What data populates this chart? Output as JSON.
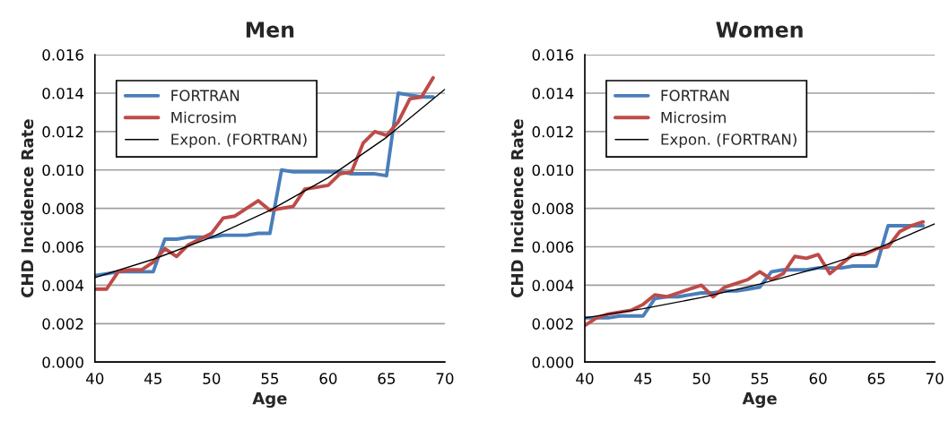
{
  "chart_data": [
    {
      "type": "line",
      "title": "Men",
      "xlabel": "Age",
      "ylabel": "CHD Incidence Rate",
      "x": [
        40,
        41,
        42,
        43,
        44,
        45,
        46,
        47,
        48,
        49,
        50,
        51,
        52,
        53,
        54,
        55,
        56,
        57,
        58,
        59,
        60,
        61,
        62,
        63,
        64,
        65,
        66,
        67,
        68,
        69
      ],
      "series": [
        {
          "name": "FORTRAN",
          "color": "#4a7ebb",
          "values": [
            0.0045,
            0.0046,
            0.0047,
            0.0047,
            0.0047,
            0.0047,
            0.0064,
            0.0064,
            0.0065,
            0.0065,
            0.0065,
            0.0066,
            0.0066,
            0.0066,
            0.0067,
            0.0067,
            0.01,
            0.0099,
            0.0099,
            0.0099,
            0.0099,
            0.0099,
            0.0098,
            0.0098,
            0.0098,
            0.0097,
            0.014,
            0.0139,
            0.0138,
            0.0138
          ]
        },
        {
          "name": "Microsim",
          "color": "#be4b48",
          "values": [
            0.0038,
            0.0038,
            0.0047,
            0.0048,
            0.0048,
            0.0052,
            0.0059,
            0.0055,
            0.0061,
            0.0064,
            0.0067,
            0.0075,
            0.0076,
            0.008,
            0.0084,
            0.0079,
            0.008,
            0.0081,
            0.009,
            0.0091,
            0.0092,
            0.0098,
            0.0099,
            0.0114,
            0.012,
            0.0118,
            0.0125,
            0.0137,
            0.0138,
            0.0148
          ]
        },
        {
          "name": "Expon. (FORTRAN)",
          "color": "#000000",
          "x": [
            40,
            45,
            50,
            55,
            60,
            65,
            70
          ],
          "values": [
            0.0044,
            0.00535,
            0.0065,
            0.0079,
            0.0096,
            0.0117,
            0.0142
          ]
        }
      ],
      "xlim": [
        40,
        70
      ],
      "xticks": [
        40,
        45,
        50,
        55,
        60,
        65,
        70
      ],
      "ylim": [
        0,
        0.016
      ],
      "yticks": [
        {
          "value": 0,
          "label": "0.000"
        },
        {
          "value": 0.002,
          "label": "0.002"
        },
        {
          "value": 0.004,
          "label": "0.004"
        },
        {
          "value": 0.006,
          "label": "0.006"
        },
        {
          "value": 0.008,
          "label": "0.008"
        },
        {
          "value": 0.01,
          "label": "0.010"
        },
        {
          "value": 0.012,
          "label": "0.012"
        },
        {
          "value": 0.014,
          "label": "0.014"
        },
        {
          "value": 0.016,
          "label": "0.016"
        }
      ],
      "grid": "y",
      "legend": "top left",
      "marker": "none",
      "line_style": "solid"
    },
    {
      "type": "line",
      "title": "Women",
      "xlabel": "Age",
      "ylabel": "CHD Incidence Rate",
      "x": [
        40,
        41,
        42,
        43,
        44,
        45,
        46,
        47,
        48,
        49,
        50,
        51,
        52,
        53,
        54,
        55,
        56,
        57,
        58,
        59,
        60,
        61,
        62,
        63,
        64,
        65,
        66,
        67,
        68,
        69
      ],
      "series": [
        {
          "name": "FORTRAN",
          "color": "#4a7ebb",
          "values": [
            0.0023,
            0.0023,
            0.0023,
            0.0024,
            0.0024,
            0.0024,
            0.0033,
            0.0034,
            0.0034,
            0.0035,
            0.0036,
            0.0036,
            0.0037,
            0.0037,
            0.0038,
            0.0039,
            0.0047,
            0.0048,
            0.0048,
            0.0048,
            0.0049,
            0.0049,
            0.0049,
            0.005,
            0.005,
            0.005,
            0.0071,
            0.0071,
            0.0071,
            0.0071
          ]
        },
        {
          "name": "Microsim",
          "color": "#be4b48",
          "values": [
            0.0019,
            0.0023,
            0.0025,
            0.0026,
            0.0027,
            0.003,
            0.0035,
            0.0034,
            0.0036,
            0.0038,
            0.004,
            0.0034,
            0.0039,
            0.0041,
            0.0043,
            0.0047,
            0.0043,
            0.0046,
            0.0055,
            0.0054,
            0.0056,
            0.0046,
            0.0051,
            0.0056,
            0.0056,
            0.0059,
            0.006,
            0.0068,
            0.0071,
            0.0073
          ]
        },
        {
          "name": "Expon. (FORTRAN)",
          "color": "#000000",
          "x": [
            40,
            45,
            50,
            55,
            60,
            65,
            70
          ],
          "values": [
            0.0023,
            0.00278,
            0.00336,
            0.00406,
            0.0049,
            0.0059,
            0.0072
          ]
        }
      ],
      "xlim": [
        40,
        70
      ],
      "xticks": [
        40,
        45,
        50,
        55,
        60,
        65,
        70
      ],
      "ylim": [
        0,
        0.016
      ],
      "yticks": [
        {
          "value": 0,
          "label": "0.000"
        },
        {
          "value": 0.002,
          "label": "0.002"
        },
        {
          "value": 0.004,
          "label": "0.004"
        },
        {
          "value": 0.006,
          "label": "0.006"
        },
        {
          "value": 0.008,
          "label": "0.008"
        },
        {
          "value": 0.01,
          "label": "0.010"
        },
        {
          "value": 0.012,
          "label": "0.012"
        },
        {
          "value": 0.014,
          "label": "0.014"
        },
        {
          "value": 0.016,
          "label": "0.016"
        }
      ],
      "grid": "y",
      "legend": "top left",
      "marker": "none",
      "line_style": "solid"
    }
  ]
}
